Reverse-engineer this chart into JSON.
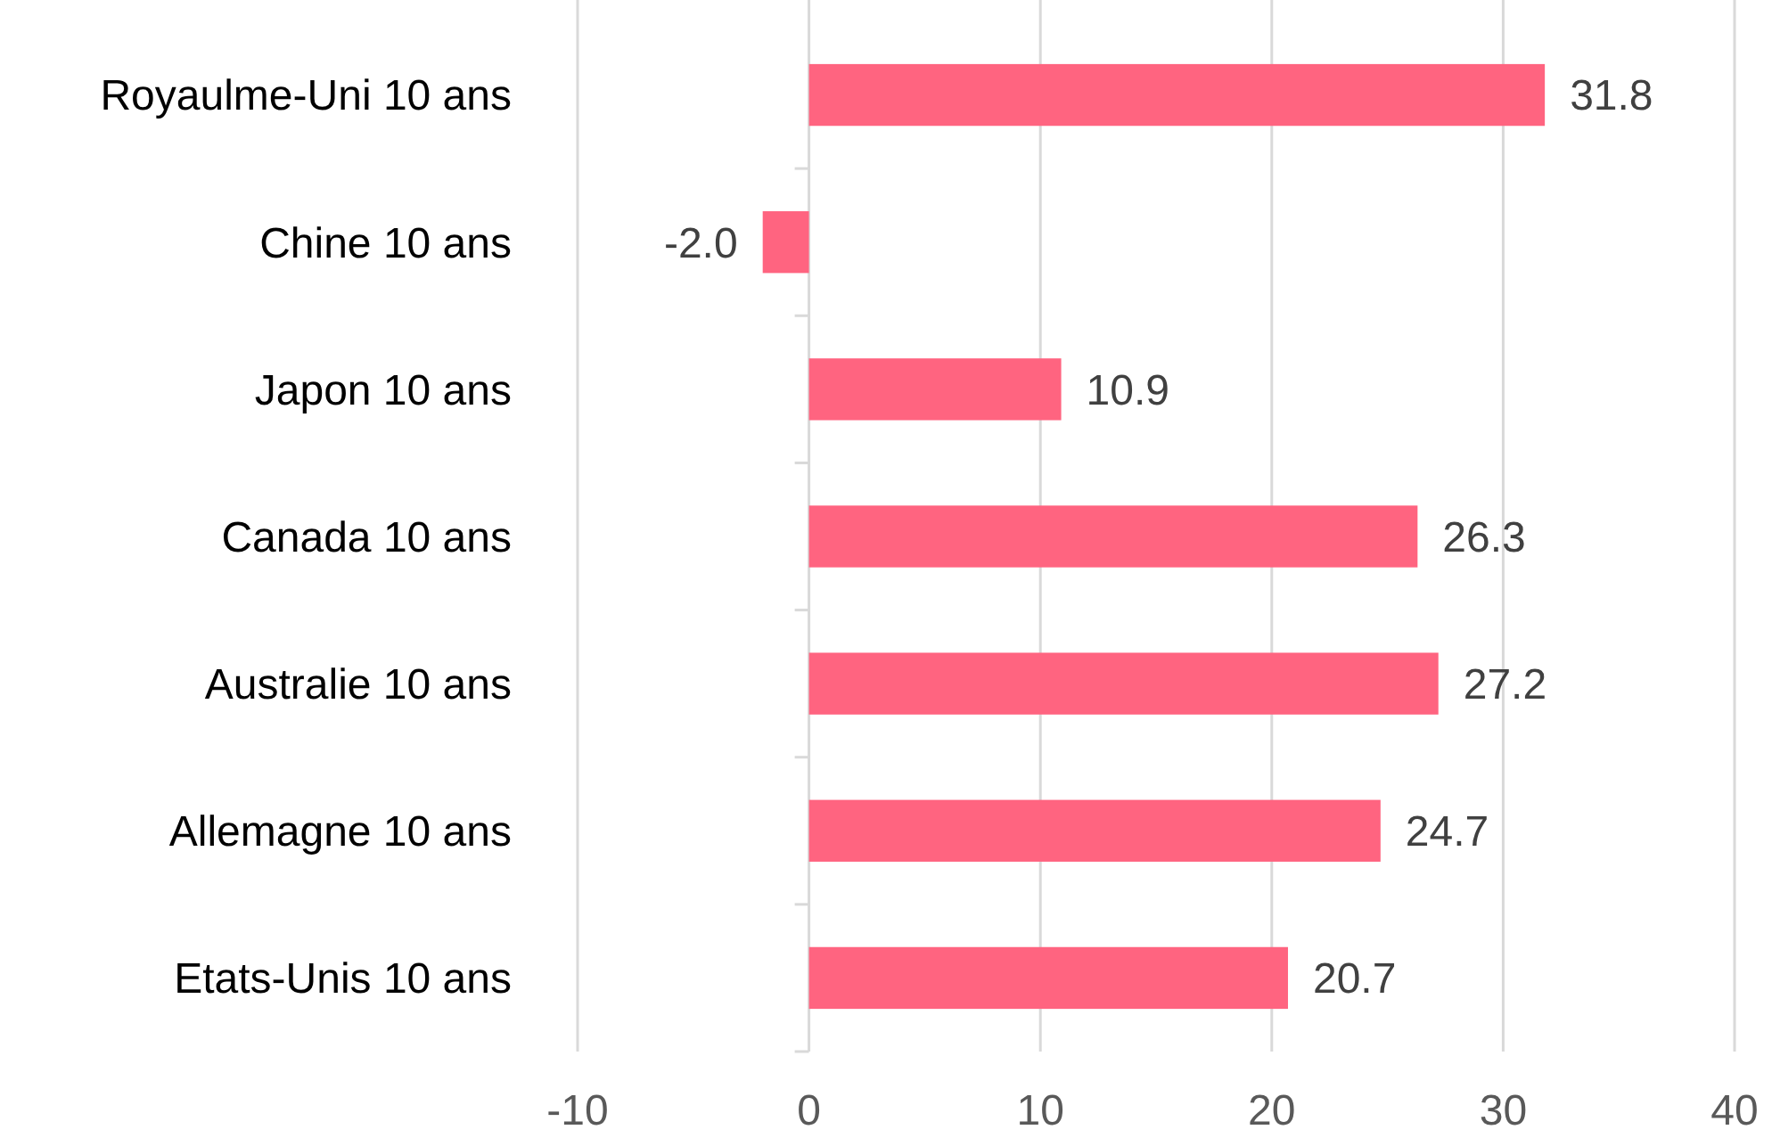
{
  "chart_data": {
    "type": "bar",
    "orientation": "horizontal",
    "categories": [
      "Royaulme-Uni 10 ans",
      "Chine 10 ans",
      "Japon 10 ans",
      "Canada 10 ans",
      "Australie 10 ans",
      "Allemagne 10 ans",
      "Etats-Unis 10 ans"
    ],
    "values": [
      31.8,
      -2.0,
      10.9,
      26.3,
      27.2,
      24.7,
      20.7
    ],
    "value_labels": [
      "31.8",
      "-2.0",
      "10.9",
      "26.3",
      "27.2",
      "24.7",
      "20.7"
    ],
    "color": "#ff6480",
    "xlim": [
      -10,
      40
    ],
    "xticks": [
      -10,
      0,
      10,
      20,
      30,
      40
    ],
    "grid": "x"
  }
}
